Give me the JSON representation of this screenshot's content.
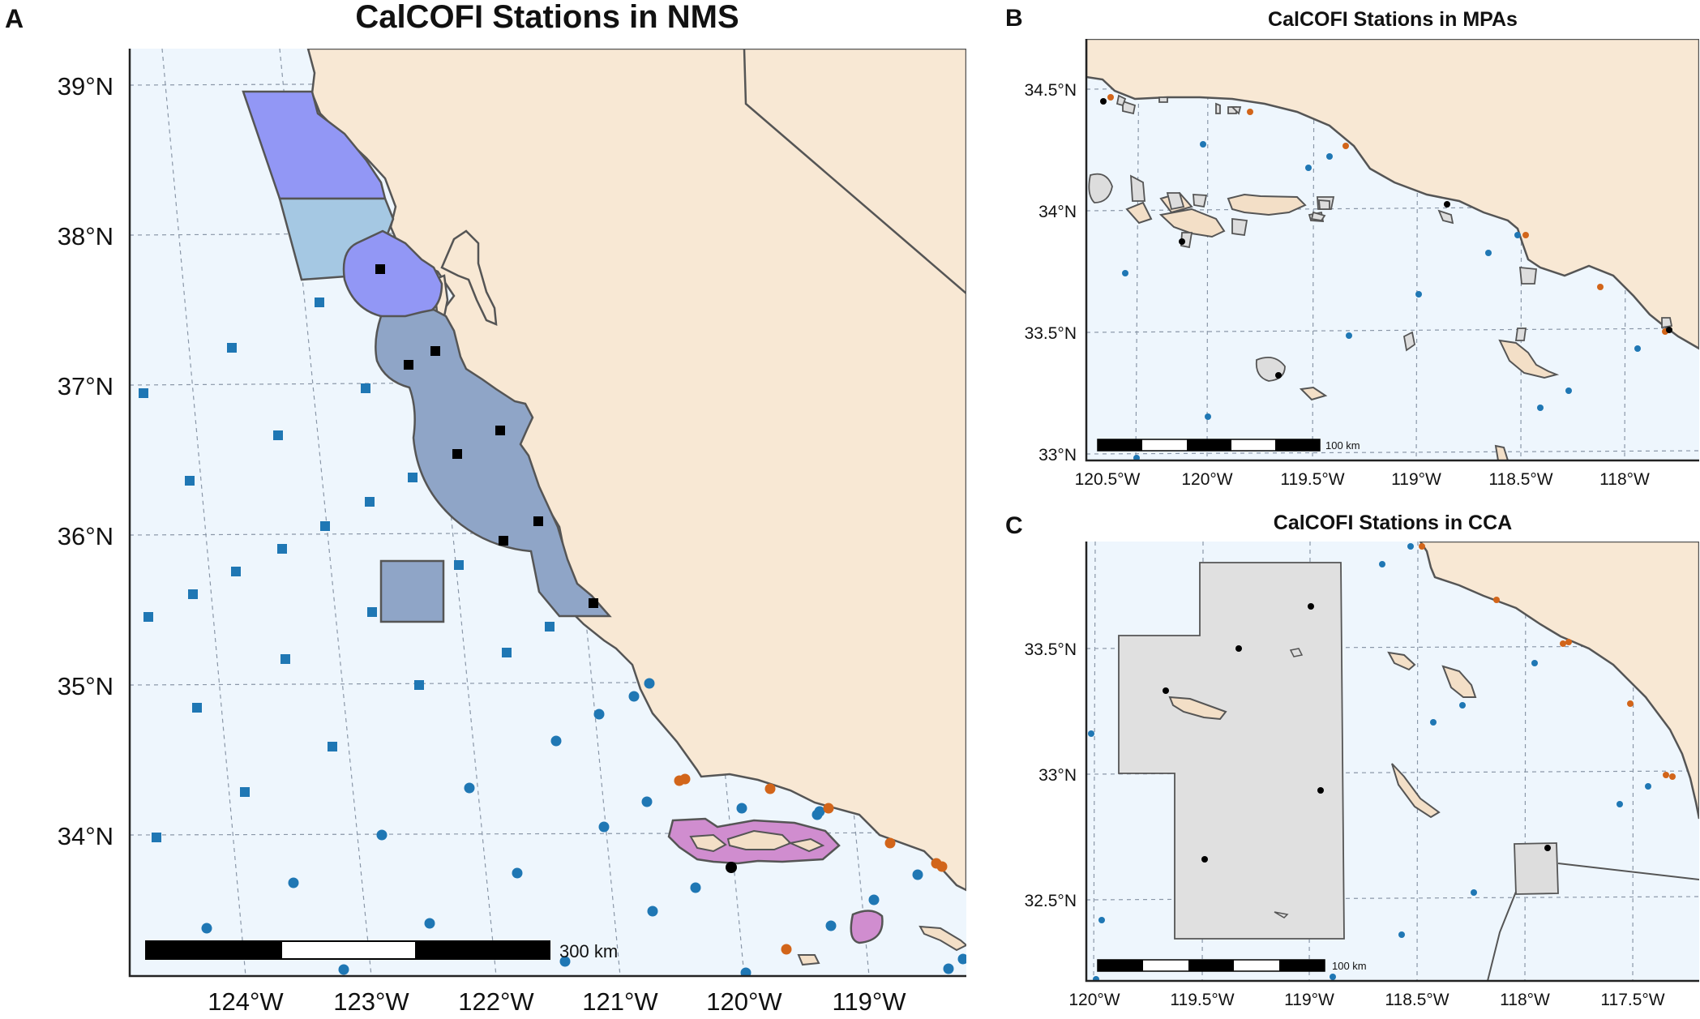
{
  "panels": {
    "a": {
      "letter": "A",
      "title": "CalCOFI Stations in NMS",
      "lon_ticks": [
        "124°W",
        "123°W",
        "122°W",
        "121°W",
        "120°W",
        "119°W"
      ],
      "lat_ticks": [
        "39°N",
        "38°N",
        "37°N",
        "36°N",
        "35°N",
        "34°N"
      ],
      "scale_label": "300 km"
    },
    "b": {
      "letter": "B",
      "title": "CalCOFI Stations in MPAs",
      "lon_ticks": [
        "120.5°W",
        "120°W",
        "119.5°W",
        "119°W",
        "118.5°W",
        "118°W"
      ],
      "lat_ticks": [
        "34.5°N",
        "34°N",
        "33.5°N",
        "33°N"
      ],
      "scale_label": "100 km"
    },
    "c": {
      "letter": "C",
      "title": "CalCOFI Stations in CCA",
      "lon_ticks": [
        "120°W",
        "119.5°W",
        "119°W",
        "118.5°W",
        "118°W",
        "117.5°W"
      ],
      "lat_ticks": [
        "33.5°N",
        "33°N",
        "32.5°N"
      ],
      "scale_label": "100 km"
    }
  },
  "colors": {
    "station_offshore": "#1f77b4",
    "station_nearshore": "#d2651a",
    "station_inside": "#000000",
    "sanctuary_cordell": "#9297f5",
    "sanctuary_farallones": "#a5c8e3",
    "sanctuary_monterey": "#8fa5c7",
    "sanctuary_channel_islands": "#d08dcf",
    "land": "#f8e8d4",
    "ocean": "#eef6fd",
    "mpa": "#dddddd"
  }
}
